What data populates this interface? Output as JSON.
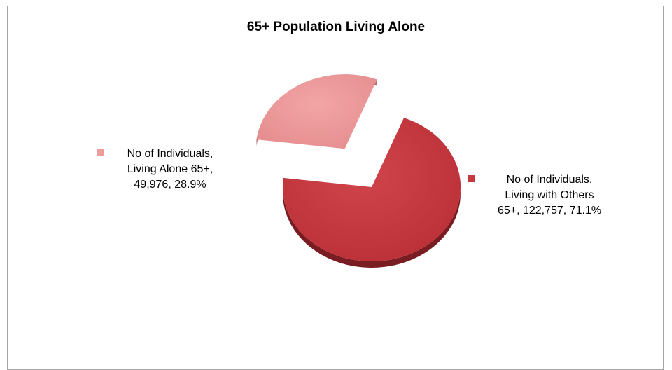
{
  "chart_data": {
    "type": "pie",
    "title": "65+ Population Living Alone",
    "slices": [
      {
        "name": "No of Individuals, Living Alone 65+",
        "value": 49976,
        "percent": 28.9,
        "color": "#ee9b9c",
        "side_color": "#b56e70",
        "exploded": true,
        "label_lines": [
          "No of Individuals,",
          "Living Alone 65+,",
          "49,976, 28.9%"
        ]
      },
      {
        "name": "No of Individuals, Living with Others 65+",
        "value": 122757,
        "percent": 71.1,
        "color": "#c8393f",
        "side_color": "#7a1d22",
        "exploded": false,
        "label_lines": [
          "No of Individuals,",
          "Living with Others",
          "65+, 122,757, 71.1%"
        ]
      }
    ],
    "legend": "none",
    "style": "3d-exploded"
  }
}
